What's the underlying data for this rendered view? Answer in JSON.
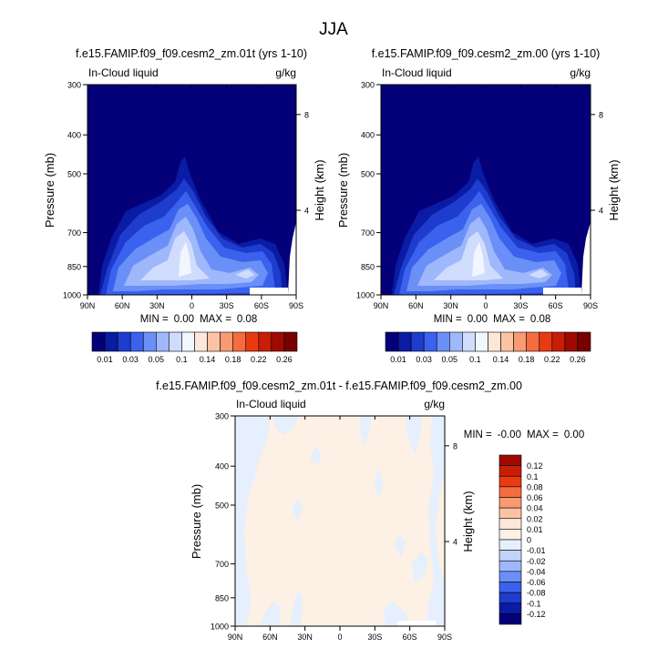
{
  "figure_title": "JJA",
  "chart_data": [
    {
      "type": "heatmap",
      "title": "f.e15.FAMIP.f09_f09.cesm2_zm.01t (yrs 1-10)",
      "left_label": "In-Cloud liquid",
      "right_label": "g/kg",
      "ylabel": "Pressure (mb)",
      "ylabel_right": "Height (km)",
      "x_ticks": [
        "90N",
        "60N",
        "30N",
        "0",
        "30S",
        "60S",
        "90S"
      ],
      "y_ticks": [
        "300",
        "400",
        "500",
        "700",
        "850",
        "1000"
      ],
      "y_right_ticks": [
        "8",
        "4"
      ],
      "stats": {
        "min_label": "MIN =",
        "min_value": "0.00",
        "max_label": "MAX =",
        "max_value": "0.08"
      },
      "colorbar": {
        "labels": [
          "0.01",
          "0.03",
          "0.05",
          "0.1",
          "0.14",
          "0.18",
          "0.22",
          "0.26"
        ],
        "colors": [
          "#04007a",
          "#0a1ba4",
          "#1e3ccd",
          "#3a62ee",
          "#6a90f7",
          "#9eb8fb",
          "#cfdcfd",
          "#f2f6ff",
          "#fde7d8",
          "#fbc3a4",
          "#f89a72",
          "#f56c3f",
          "#ea3a12",
          "#c81d06",
          "#9e0a02",
          "#780000"
        ]
      }
    },
    {
      "type": "heatmap",
      "title": "f.e15.FAMIP.f09_f09.cesm2_zm.00 (yrs 1-10)",
      "left_label": "In-Cloud liquid",
      "right_label": "g/kg",
      "ylabel": "Pressure (mb)",
      "ylabel_right": "Height (km)",
      "x_ticks": [
        "90N",
        "60N",
        "30N",
        "0",
        "30S",
        "60S",
        "90S"
      ],
      "y_ticks": [
        "300",
        "400",
        "500",
        "700",
        "850",
        "1000"
      ],
      "y_right_ticks": [
        "8",
        "4"
      ],
      "stats": {
        "min_label": "MIN =",
        "min_value": "0.00",
        "max_label": "MAX =",
        "max_value": "0.08"
      },
      "colorbar": {
        "labels": [
          "0.01",
          "0.03",
          "0.05",
          "0.1",
          "0.14",
          "0.18",
          "0.22",
          "0.26"
        ],
        "colors": [
          "#04007a",
          "#0a1ba4",
          "#1e3ccd",
          "#3a62ee",
          "#6a90f7",
          "#9eb8fb",
          "#cfdcfd",
          "#f2f6ff",
          "#fde7d8",
          "#fbc3a4",
          "#f89a72",
          "#f56c3f",
          "#ea3a12",
          "#c81d06",
          "#9e0a02",
          "#780000"
        ]
      }
    },
    {
      "type": "heatmap",
      "title": "f.e15.FAMIP.f09_f09.cesm2_zm.01t - f.e15.FAMIP.f09_f09.cesm2_zm.00",
      "left_label": "In-Cloud liquid",
      "right_label": "g/kg",
      "ylabel": "Pressure (mb)",
      "ylabel_right": "Height (km)",
      "x_ticks": [
        "90N",
        "60N",
        "30N",
        "0",
        "30S",
        "60S",
        "90S"
      ],
      "y_ticks": [
        "300",
        "400",
        "500",
        "700",
        "850",
        "1000"
      ],
      "y_right_ticks": [
        "8",
        "4"
      ],
      "stats": {
        "min_label": "MIN =",
        "min_value": "-0.00",
        "max_label": "MAX =",
        "max_value": "0.00"
      },
      "colorbar": {
        "labels": [
          "0.12",
          "0.1",
          "0.08",
          "0.06",
          "0.04",
          "0.02",
          "0.01",
          "0",
          "-0.01",
          "-0.02",
          "-0.04",
          "-0.06",
          "-0.08",
          "-0.1",
          "-0.12"
        ],
        "colors": [
          "#9e0a02",
          "#c81d06",
          "#ea3a12",
          "#f56c3f",
          "#f89a72",
          "#fbc3a4",
          "#fde7d8",
          "#fdf0e4",
          "#e6effd",
          "#c2d4fb",
          "#9eb8fb",
          "#6a90f7",
          "#3a62ee",
          "#1e3ccd",
          "#0a1ba4",
          "#04007a"
        ]
      }
    }
  ]
}
